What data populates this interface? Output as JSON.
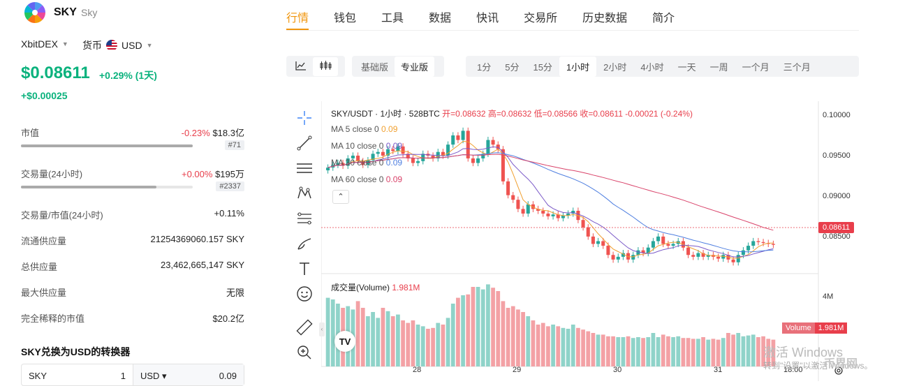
{
  "coin": {
    "symbol": "SKY",
    "name": "Sky"
  },
  "selectors": {
    "exchange": "XbitDEX",
    "currency_label": "货币",
    "currency": "USD"
  },
  "price": {
    "value": "$0.08611",
    "change_pct": "+0.29% (1天)",
    "change_abs": "+$0.00025"
  },
  "stats": [
    {
      "label": "市值",
      "change": "-0.23%",
      "value": "$18.3亿",
      "rank": "#71",
      "bar": 1.0
    },
    {
      "label": "交易量(24小时)",
      "change": "+0.00%",
      "value": "$195万",
      "rank": "#2337",
      "bar": 0.79
    },
    {
      "label": "交易量/市值(24小时)",
      "value": "+0.11%"
    },
    {
      "label": "流通供应量",
      "value": "21254369060.157 SKY"
    },
    {
      "label": "总供应量",
      "value": "23,462,665,147 SKY"
    },
    {
      "label": "最大供应量",
      "value": "无限"
    },
    {
      "label": "完全稀释的市值",
      "value": "$20.2亿"
    }
  ],
  "converter": {
    "title": "SKY兑换为USD的转换器",
    "from": "SKY",
    "from_amt": "1",
    "to": "USD ▾",
    "to_amt": "0.09"
  },
  "tabs": [
    "行情",
    "钱包",
    "工具",
    "数据",
    "快讯",
    "交易所",
    "历史数据",
    "简介"
  ],
  "modes": [
    "基础版",
    "专业版"
  ],
  "intervals": [
    "1分",
    "5分",
    "15分",
    "1小时",
    "2小时",
    "4小时",
    "一天",
    "一周",
    "一个月",
    "三个月"
  ],
  "chart_header": {
    "pair": "SKY/USDT · 1小时 · 528BTC",
    "open_label": "开=0.08632",
    "high_label": "高=0.08632",
    "low_label": "低=0.08566",
    "close_label": "收=0.08611",
    "delta": "-0.00021 (-0.24%)"
  },
  "ma_lines": [
    {
      "label": "MA 5 close 0",
      "val": "0.09",
      "color": "#f0a030"
    },
    {
      "label": "MA 10 close 0",
      "val": "0.09",
      "color": "#7b5ac8"
    },
    {
      "label": "MA 30 close 0",
      "val": "0.09",
      "color": "#4f7fe0"
    },
    {
      "label": "MA 60 close 0",
      "val": "0.09",
      "color": "#d9436a"
    }
  ],
  "volume_label": {
    "title": "成交量(Volume)",
    "value": "1.981M",
    "badge": "Volume",
    "badge_val": "1.981M"
  },
  "yticks": [
    "0.10000",
    "0.09500",
    "0.09000",
    "0.08500"
  ],
  "current_price_tag": "0.08611",
  "vol_tick": "4M",
  "xticks": [
    "28",
    "29",
    "30",
    "31",
    "18:00"
  ],
  "watermark": {
    "line1": "激活 Windows",
    "line2": "转到\"设置\"以激活 Windows。",
    "brand": "币界网"
  },
  "chart_data": {
    "type": "candlestick",
    "title": "SKY/USDT · 1小时 · 528BTC",
    "ylim": [
      0.0835,
      0.1002
    ],
    "close": [
      0.0945,
      0.0948,
      0.095,
      0.0947,
      0.0955,
      0.0958,
      0.0952,
      0.0948,
      0.0953,
      0.096,
      0.0962,
      0.0958,
      0.0965,
      0.0963,
      0.0968,
      0.096,
      0.0955,
      0.095,
      0.0952,
      0.096,
      0.0958,
      0.0955,
      0.0962,
      0.0958,
      0.097,
      0.098,
      0.0975,
      0.0985,
      0.0955,
      0.095,
      0.0955,
      0.096,
      0.0975,
      0.097,
      0.0965,
      0.093,
      0.0915,
      0.091,
      0.09,
      0.0895,
      0.0905,
      0.09,
      0.0898,
      0.0895,
      0.0892,
      0.0894,
      0.089,
      0.0893,
      0.0895,
      0.0898,
      0.0888,
      0.088,
      0.087,
      0.0862,
      0.0865,
      0.086,
      0.085,
      0.0845,
      0.0848,
      0.0852,
      0.0845,
      0.085,
      0.0855,
      0.0852,
      0.0858,
      0.0865,
      0.087,
      0.0862,
      0.086,
      0.0862,
      0.0865,
      0.0858,
      0.085,
      0.0848,
      0.0852,
      0.0848,
      0.085,
      0.0848,
      0.0846,
      0.085,
      0.0845,
      0.0842,
      0.085,
      0.0855,
      0.086,
      0.0865,
      0.0864,
      0.0863,
      0.0862,
      0.0861
    ],
    "volume": [
      0.82,
      0.8,
      0.75,
      0.7,
      0.72,
      0.68,
      0.78,
      0.7,
      0.6,
      0.65,
      0.58,
      0.7,
      0.66,
      0.6,
      0.62,
      0.55,
      0.52,
      0.55,
      0.5,
      0.48,
      0.45,
      0.46,
      0.52,
      0.5,
      0.58,
      0.75,
      0.82,
      0.85,
      0.86,
      0.95,
      0.95,
      0.92,
      0.98,
      0.94,
      0.9,
      0.78,
      0.7,
      0.72,
      0.68,
      0.65,
      0.6,
      0.55,
      0.5,
      0.52,
      0.48,
      0.5,
      0.48,
      0.46,
      0.45,
      0.5,
      0.46,
      0.44,
      0.42,
      0.4,
      0.38,
      0.38,
      0.36,
      0.36,
      0.35,
      0.35,
      0.36,
      0.34,
      0.35,
      0.34,
      0.35,
      0.4,
      0.35,
      0.38,
      0.36,
      0.35,
      0.36,
      0.34,
      0.34,
      0.33,
      0.33,
      0.35,
      0.32,
      0.33,
      0.32,
      0.34,
      0.4,
      0.38,
      0.4,
      0.36,
      0.37,
      0.38,
      0.35,
      0.36,
      0.33,
      0.32
    ]
  }
}
